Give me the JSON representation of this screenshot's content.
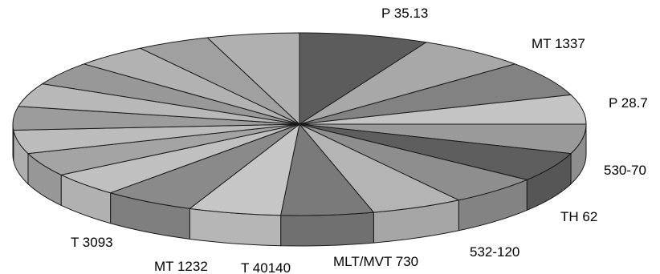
{
  "chart_data": {
    "type": "pie",
    "style": "3d-tilted",
    "title": "",
    "legend": "none",
    "slices": [
      {
        "label": "P 35.13",
        "value": 7,
        "color": "#5c5c5c"
      },
      {
        "label": "MT 1337",
        "value": 6,
        "color": "#a8a8a8"
      },
      {
        "label": "P 28.7",
        "value": 6,
        "color": "#828282"
      },
      {
        "label": "",
        "value": 5,
        "color": "#c4c4c4"
      },
      {
        "label": "530-70",
        "value": 5,
        "color": "#9a9a9a"
      },
      {
        "label": "TH 62",
        "value": 5,
        "color": "#5e5e5e"
      },
      {
        "label": "532-120",
        "value": 5,
        "color": "#8e8e8e"
      },
      {
        "label": "MLT/MVT 730",
        "value": 5,
        "color": "#b4b4b4"
      },
      {
        "label": "T 40140",
        "value": 5,
        "color": "#7a7a7a"
      },
      {
        "label": "MT 1232",
        "value": 5,
        "color": "#c6c6c6"
      },
      {
        "label": "T 3093",
        "value": 5,
        "color": "#8a8a8a"
      },
      {
        "label": "",
        "value": 4,
        "color": "#c0c0c0"
      },
      {
        "label": "",
        "value": 4,
        "color": "#a4a4a4"
      },
      {
        "label": "",
        "value": 4,
        "color": "#bcbcbc"
      },
      {
        "label": "",
        "value": 4,
        "color": "#9c9c9c"
      },
      {
        "label": "",
        "value": 4,
        "color": "#b8b8b8"
      },
      {
        "label": "",
        "value": 4,
        "color": "#989898"
      },
      {
        "label": "",
        "value": 4,
        "color": "#b2b2b2"
      },
      {
        "label": "",
        "value": 4,
        "color": "#a0a0a0"
      },
      {
        "label": "",
        "value": 5,
        "color": "#b0b0b0"
      }
    ]
  }
}
